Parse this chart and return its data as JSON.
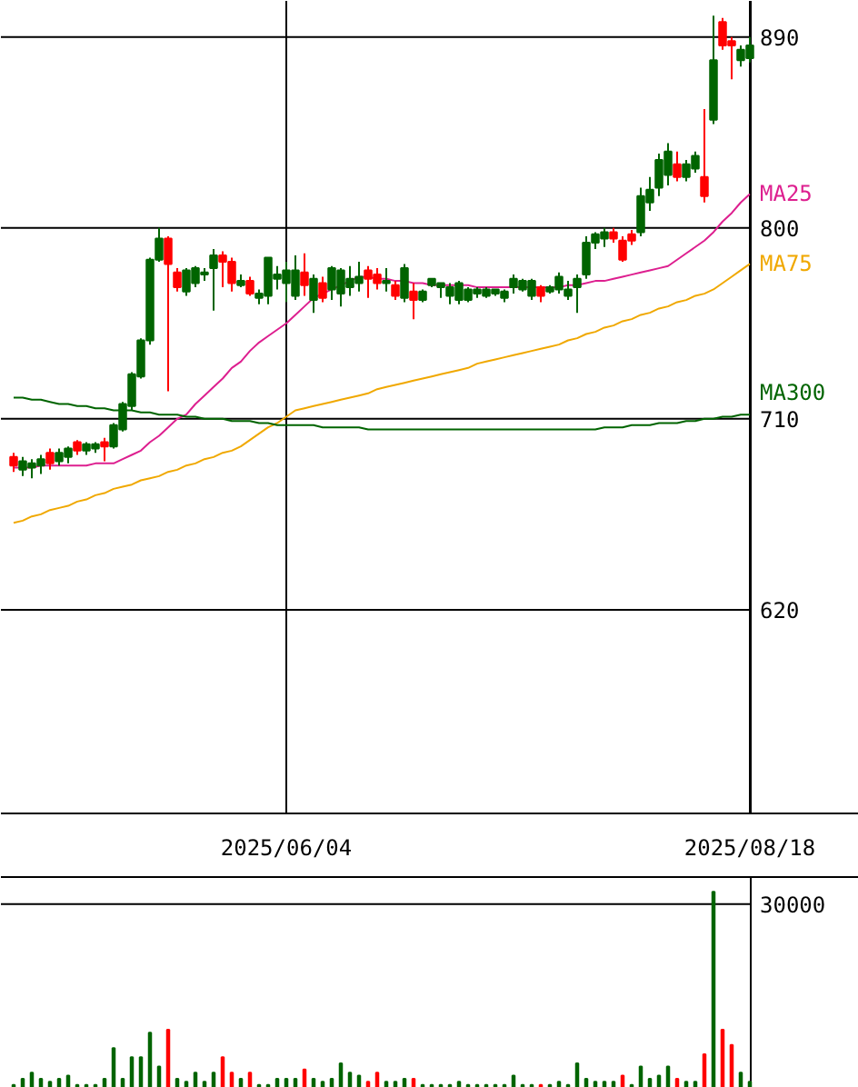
{
  "chart_data": [
    {
      "type": "candlestick",
      "categories": [
        null,
        null,
        null,
        null,
        null,
        null,
        null,
        null,
        null,
        null,
        null,
        null,
        null,
        null,
        null,
        null,
        null,
        null,
        null,
        null,
        null,
        null,
        null,
        null,
        null,
        null,
        null,
        null,
        null,
        null,
        "2025/06/04",
        null,
        null,
        null,
        null,
        null,
        null,
        null,
        null,
        null,
        null,
        null,
        null,
        null,
        null,
        null,
        null,
        null,
        null,
        null,
        null,
        null,
        null,
        null,
        null,
        null,
        null,
        null,
        null,
        null,
        null,
        null,
        null,
        null,
        null,
        null,
        null,
        null,
        null,
        null,
        null,
        null,
        null,
        null,
        null,
        null,
        null,
        null,
        null,
        null,
        null,
        "2025/08/18"
      ],
      "ohlc": [
        [
          692,
          694,
          685,
          688
        ],
        [
          686,
          692,
          683,
          690
        ],
        [
          687,
          691,
          682,
          689
        ],
        [
          688,
          693,
          684,
          691
        ],
        [
          694,
          696,
          686,
          689
        ],
        [
          690,
          696,
          688,
          694
        ],
        [
          692,
          697,
          689,
          696
        ],
        [
          699,
          700,
          693,
          695
        ],
        [
          695,
          699,
          693,
          698
        ],
        [
          696,
          699,
          694,
          698
        ],
        [
          699,
          701,
          690,
          697
        ],
        [
          697,
          708,
          696,
          707
        ],
        [
          705,
          718,
          704,
          717
        ],
        [
          716,
          732,
          714,
          731
        ],
        [
          730,
          748,
          729,
          747
        ],
        [
          747,
          786,
          745,
          785
        ],
        [
          785,
          800,
          784,
          795
        ],
        [
          795,
          796,
          723,
          783
        ],
        [
          779,
          781,
          770,
          772
        ],
        [
          770,
          781,
          768,
          780
        ],
        [
          774,
          782,
          772,
          781
        ],
        [
          778,
          781,
          775,
          779
        ],
        [
          781,
          790,
          761,
          787
        ],
        [
          787,
          789,
          772,
          784
        ],
        [
          784,
          786,
          770,
          774
        ],
        [
          773,
          778,
          772,
          775
        ],
        [
          775,
          777,
          768,
          769
        ],
        [
          767,
          771,
          764,
          769
        ],
        [
          768,
          786,
          764,
          786
        ],
        [
          776,
          782,
          771,
          778
        ],
        [
          774,
          784,
          765,
          780
        ],
        [
          768,
          787,
          766,
          780
        ],
        [
          779,
          788,
          768,
          773
        ],
        [
          766,
          778,
          760,
          776
        ],
        [
          774,
          777,
          765,
          767
        ],
        [
          771,
          782,
          766,
          781
        ],
        [
          769,
          781,
          763,
          780
        ],
        [
          772,
          782,
          768,
          776
        ],
        [
          774,
          784,
          770,
          777
        ],
        [
          780,
          782,
          767,
          776
        ],
        [
          778,
          781,
          771,
          774
        ],
        [
          774,
          781,
          770,
          775
        ],
        [
          773,
          775,
          766,
          768
        ],
        [
          767,
          783,
          765,
          781
        ],
        [
          770,
          774,
          757,
          766
        ],
        [
          766,
          771,
          765,
          770
        ],
        [
          773,
          776,
          772,
          776
        ],
        [
          772,
          774,
          767,
          774
        ],
        [
          768,
          774,
          764,
          772
        ],
        [
          766,
          775,
          764,
          774
        ],
        [
          766,
          772,
          765,
          771
        ],
        [
          769,
          772,
          767,
          771
        ],
        [
          768,
          772,
          767,
          771
        ],
        [
          769,
          771,
          768,
          771
        ],
        [
          767,
          771,
          765,
          770
        ],
        [
          772,
          778,
          769,
          776
        ],
        [
          771,
          776,
          770,
          775
        ],
        [
          768,
          776,
          766,
          775
        ],
        [
          772,
          773,
          765,
          768
        ],
        [
          770,
          773,
          769,
          772
        ],
        [
          771,
          779,
          769,
          777
        ],
        [
          768,
          775,
          766,
          771
        ],
        [
          772,
          778,
          760,
          776
        ],
        [
          778,
          796,
          776,
          793
        ],
        [
          793,
          798,
          790,
          797
        ],
        [
          795,
          800,
          791,
          798
        ],
        [
          798,
          800,
          793,
          795
        ],
        [
          794,
          796,
          784,
          785
        ],
        [
          797,
          799,
          792,
          794
        ],
        [
          798,
          819,
          796,
          815
        ],
        [
          812,
          824,
          808,
          818
        ],
        [
          819,
          835,
          815,
          832
        ],
        [
          825,
          840,
          820,
          836
        ],
        [
          830,
          836,
          822,
          824
        ],
        [
          824,
          832,
          822,
          830
        ],
        [
          828,
          836,
          826,
          834
        ],
        [
          824,
          856,
          812,
          815
        ],
        [
          851,
          900,
          849,
          879
        ],
        [
          897,
          899,
          884,
          886
        ],
        [
          888,
          890,
          870,
          886
        ],
        [
          879,
          886,
          876,
          884
        ],
        [
          880,
          890,
          878,
          886
        ]
      ],
      "colors": [
        "#ff0000",
        "#006400",
        "#006400",
        "#006400",
        "#ff0000",
        "#006400",
        "#006400",
        "#ff0000",
        "#006400",
        "#006400",
        "#ff0000",
        "#006400",
        "#006400",
        "#006400",
        "#006400",
        "#006400",
        "#006400",
        "#ff0000",
        "#ff0000",
        "#006400",
        "#006400",
        "#006400",
        "#006400",
        "#ff0000",
        "#ff0000",
        "#006400",
        "#ff0000",
        "#006400",
        "#006400",
        "#006400",
        "#006400",
        "#006400",
        "#ff0000",
        "#006400",
        "#ff0000",
        "#006400",
        "#006400",
        "#006400",
        "#006400",
        "#ff0000",
        "#ff0000",
        "#006400",
        "#ff0000",
        "#006400",
        "#ff0000",
        "#006400",
        "#006400",
        "#006400",
        "#006400",
        "#006400",
        "#006400",
        "#006400",
        "#006400",
        "#006400",
        "#006400",
        "#006400",
        "#006400",
        "#006400",
        "#ff0000",
        "#006400",
        "#006400",
        "#006400",
        "#006400",
        "#006400",
        "#006400",
        "#006400",
        "#ff0000",
        "#ff0000",
        "#ff0000",
        "#006400",
        "#006400",
        "#006400",
        "#006400",
        "#ff0000",
        "#006400",
        "#006400",
        "#ff0000",
        "#006400",
        "#ff0000",
        "#ff0000",
        "#006400",
        "#006400"
      ],
      "series": [
        {
          "type": "line",
          "name": "MA25",
          "color": "#dd1f8f",
          "values": [
            687,
            687,
            687,
            688,
            688,
            688,
            688,
            688,
            688,
            689,
            689,
            689,
            691,
            693,
            695,
            699,
            702,
            706,
            710,
            712,
            717,
            721,
            725,
            729,
            734,
            737,
            742,
            746,
            749,
            752,
            755,
            759,
            763,
            767,
            769,
            771,
            773,
            775,
            777,
            777,
            776,
            776,
            775,
            775,
            774,
            774,
            773,
            773,
            773,
            773,
            773,
            772,
            772,
            772,
            772,
            772,
            772,
            772,
            772,
            772,
            772,
            773,
            773,
            774,
            775,
            775,
            776,
            777,
            778,
            779,
            780,
            781,
            782,
            785,
            788,
            791,
            794,
            798,
            803,
            807,
            812,
            816
          ]
        },
        {
          "type": "line",
          "name": "MA75",
          "color": "#f0a800",
          "values": [
            661,
            662,
            664,
            665,
            667,
            668,
            669,
            671,
            672,
            674,
            675,
            677,
            678,
            679,
            681,
            682,
            683,
            685,
            686,
            688,
            689,
            691,
            692,
            694,
            695,
            697,
            700,
            703,
            706,
            708,
            711,
            714,
            715,
            716,
            717,
            718,
            719,
            720,
            721,
            722,
            724,
            725,
            726,
            727,
            728,
            729,
            730,
            731,
            732,
            733,
            734,
            736,
            737,
            738,
            739,
            740,
            741,
            742,
            743,
            744,
            745,
            747,
            748,
            750,
            751,
            753,
            754,
            756,
            757,
            759,
            760,
            762,
            763,
            765,
            766,
            768,
            769,
            771,
            774,
            777,
            780,
            783
          ]
        },
        {
          "type": "line",
          "name": "MA300",
          "color": "#006400",
          "values": [
            720,
            720,
            719,
            719,
            718,
            717,
            717,
            716,
            716,
            715,
            715,
            714,
            714,
            714,
            713,
            713,
            712,
            712,
            712,
            711,
            711,
            710,
            710,
            710,
            709,
            709,
            709,
            708,
            708,
            707,
            707,
            707,
            707,
            707,
            706,
            706,
            706,
            706,
            706,
            705,
            705,
            705,
            705,
            705,
            705,
            705,
            705,
            705,
            705,
            705,
            705,
            705,
            705,
            705,
            705,
            705,
            705,
            705,
            705,
            705,
            705,
            705,
            705,
            705,
            705,
            706,
            706,
            706,
            707,
            707,
            707,
            708,
            708,
            708,
            709,
            709,
            710,
            710,
            711,
            711,
            712,
            712
          ]
        }
      ],
      "ylim": [
        524,
        907
      ],
      "yticks": [
        620,
        710,
        800,
        890
      ],
      "grid": true
    },
    {
      "type": "bar",
      "categories": [
        null,
        null,
        null,
        null,
        null,
        null,
        null,
        null,
        null,
        null,
        null,
        null,
        null,
        null,
        null,
        null,
        null,
        null,
        null,
        null,
        null,
        null,
        null,
        null,
        null,
        null,
        null,
        null,
        null,
        null,
        null,
        null,
        null,
        null,
        null,
        null,
        null,
        null,
        null,
        null,
        null,
        null,
        null,
        null,
        null,
        null,
        null,
        null,
        null,
        null,
        null,
        null,
        null,
        null,
        null,
        null,
        null,
        null,
        null,
        null,
        null,
        null,
        null,
        null,
        null,
        null,
        null,
        null,
        null,
        null,
        null,
        null,
        null,
        null,
        null,
        null,
        null,
        null,
        null,
        null,
        null,
        null
      ],
      "values": [
        500,
        1500,
        2500,
        1500,
        1000,
        1500,
        2000,
        500,
        500,
        500,
        1500,
        6500,
        1500,
        5000,
        5000,
        9000,
        3500,
        9500,
        1500,
        1000,
        2500,
        1000,
        2500,
        5000,
        2500,
        1500,
        2500,
        500,
        500,
        1500,
        1500,
        1500,
        3000,
        1500,
        1000,
        1500,
        4000,
        2500,
        2000,
        1000,
        2500,
        1000,
        1000,
        1500,
        1500,
        500,
        500,
        500,
        500,
        1000,
        500,
        500,
        500,
        500,
        500,
        2000,
        500,
        500,
        500,
        500,
        1000,
        500,
        4000,
        1500,
        1000,
        1000,
        1000,
        2000,
        500,
        3500,
        1500,
        2000,
        3500,
        1500,
        1000,
        1000,
        5500,
        32000,
        9500,
        7000,
        2500,
        1000
      ],
      "colors": [
        "#006400",
        "#006400",
        "#006400",
        "#006400",
        "#006400",
        "#006400",
        "#006400",
        "#006400",
        "#006400",
        "#006400",
        "#006400",
        "#006400",
        "#006400",
        "#006400",
        "#006400",
        "#006400",
        "#006400",
        "#ff0000",
        "#006400",
        "#006400",
        "#006400",
        "#006400",
        "#006400",
        "#ff0000",
        "#ff0000",
        "#006400",
        "#ff0000",
        "#006400",
        "#006400",
        "#006400",
        "#006400",
        "#006400",
        "#ff0000",
        "#006400",
        "#006400",
        "#006400",
        "#006400",
        "#006400",
        "#006400",
        "#ff0000",
        "#ff0000",
        "#006400",
        "#006400",
        "#006400",
        "#ff0000",
        "#006400",
        "#006400",
        "#006400",
        "#006400",
        "#006400",
        "#006400",
        "#006400",
        "#006400",
        "#006400",
        "#006400",
        "#006400",
        "#006400",
        "#006400",
        "#ff0000",
        "#006400",
        "#006400",
        "#006400",
        "#006400",
        "#006400",
        "#006400",
        "#006400",
        "#006400",
        "#ff0000",
        "#006400",
        "#006400",
        "#006400",
        "#006400",
        "#006400",
        "#ff0000",
        "#006400",
        "#006400",
        "#ff0000",
        "#006400",
        "#ff0000",
        "#ff0000",
        "#006400",
        "#006400"
      ],
      "ylim": [
        0,
        34400
      ],
      "yticks": [
        30000
      ],
      "grid": "y",
      "tick_labels": "y"
    }
  ]
}
